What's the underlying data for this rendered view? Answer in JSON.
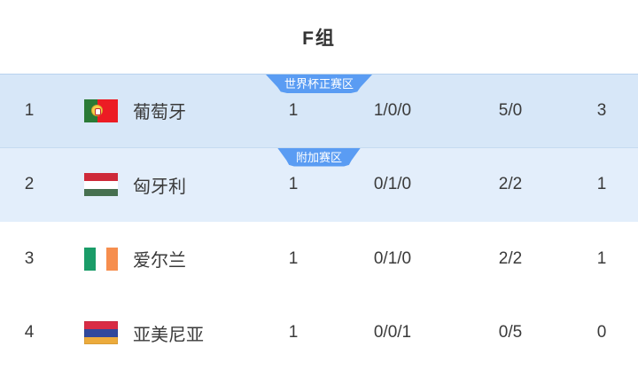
{
  "header": {
    "title": "F组"
  },
  "table": {
    "rows": [
      {
        "rank": "1",
        "team": "葡萄牙",
        "flag": "portugal",
        "badge": "世界杯正赛区",
        "played": "1",
        "record": "1/0/0",
        "goals": "5/0",
        "points": "3"
      },
      {
        "rank": "2",
        "team": "匈牙利",
        "flag": "hungary",
        "badge": "附加赛区",
        "played": "1",
        "record": "0/1/0",
        "goals": "2/2",
        "points": "1"
      },
      {
        "rank": "3",
        "team": "爱尔兰",
        "flag": "ireland",
        "played": "1",
        "record": "0/1/0",
        "goals": "2/2",
        "points": "1"
      },
      {
        "rank": "4",
        "team": "亚美尼亚",
        "flag": "armenia",
        "played": "1",
        "record": "0/0/1",
        "goals": "0/5",
        "points": "0"
      }
    ]
  },
  "colors": {
    "badge_blue": "#5a9cf3",
    "row1_highlight": "#d7e7f8",
    "row2_highlight": "#e3eefb",
    "row_border": "#b9d3ee",
    "text": "#333333",
    "badge_text": "#ffffff"
  }
}
